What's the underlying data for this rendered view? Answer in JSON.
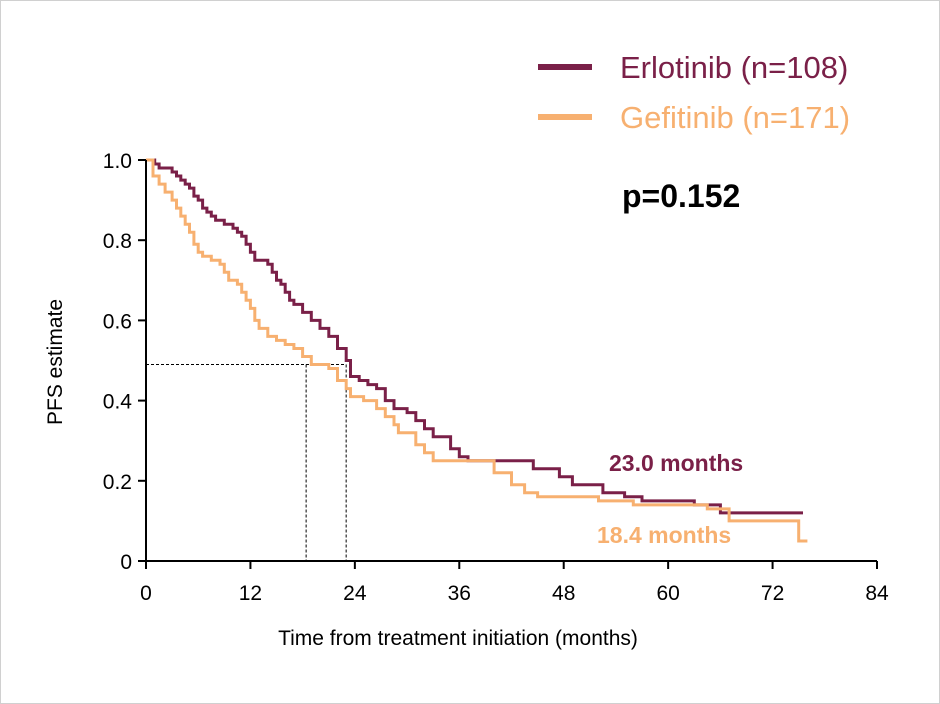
{
  "chart_data": {
    "type": "line",
    "xlabel": "Time from treatment initiation (months)",
    "ylabel": "PFS estimate",
    "xlim": [
      0,
      84
    ],
    "ylim": [
      0,
      1
    ],
    "x_ticks": [
      0,
      12,
      24,
      36,
      48,
      60,
      72,
      84
    ],
    "y_ticks": [
      0,
      0.2,
      0.4,
      0.6,
      0.8,
      1.0
    ],
    "x_tick_labels": [
      "0",
      "12",
      "24",
      "36",
      "48",
      "60",
      "72",
      "84"
    ],
    "y_tick_labels": [
      "0",
      "0.2",
      "0.4",
      "0.6",
      "0.8",
      "1.0"
    ],
    "grid": false,
    "legend_position": "top-right",
    "annotation_pvalue": "p=0.152",
    "medians": {
      "y": 0.49,
      "x": [
        18.4,
        23.0
      ]
    },
    "series": [
      {
        "name": "Erlotinib (n=108)",
        "color": "#7a2048",
        "median_label": "23.0 months",
        "steps": [
          [
            0,
            1.0
          ],
          [
            1,
            0.99
          ],
          [
            1.5,
            0.98
          ],
          [
            3,
            0.97
          ],
          [
            3.5,
            0.96
          ],
          [
            4,
            0.95
          ],
          [
            4.5,
            0.94
          ],
          [
            5,
            0.93
          ],
          [
            5.5,
            0.91
          ],
          [
            6,
            0.9
          ],
          [
            6.5,
            0.88
          ],
          [
            7,
            0.87
          ],
          [
            7.5,
            0.86
          ],
          [
            8,
            0.85
          ],
          [
            9,
            0.84
          ],
          [
            10,
            0.83
          ],
          [
            10.5,
            0.82
          ],
          [
            11,
            0.81
          ],
          [
            11.5,
            0.79
          ],
          [
            12,
            0.77
          ],
          [
            12.5,
            0.75
          ],
          [
            14,
            0.74
          ],
          [
            14.5,
            0.72
          ],
          [
            15,
            0.7
          ],
          [
            15.5,
            0.69
          ],
          [
            16,
            0.67
          ],
          [
            16.5,
            0.65
          ],
          [
            17,
            0.64
          ],
          [
            18,
            0.62
          ],
          [
            19,
            0.6
          ],
          [
            20,
            0.58
          ],
          [
            21,
            0.56
          ],
          [
            22,
            0.53
          ],
          [
            23,
            0.5
          ],
          [
            23.5,
            0.46
          ],
          [
            24.5,
            0.45
          ],
          [
            25.5,
            0.44
          ],
          [
            26.5,
            0.43
          ],
          [
            27.5,
            0.4
          ],
          [
            28.5,
            0.38
          ],
          [
            30,
            0.37
          ],
          [
            31,
            0.35
          ],
          [
            32,
            0.33
          ],
          [
            33,
            0.31
          ],
          [
            35,
            0.28
          ],
          [
            36,
            0.26
          ],
          [
            37,
            0.25
          ],
          [
            41,
            0.25
          ],
          [
            44.5,
            0.23
          ],
          [
            47.5,
            0.21
          ],
          [
            49,
            0.19
          ],
          [
            52.5,
            0.17
          ],
          [
            55,
            0.16
          ],
          [
            57,
            0.15
          ],
          [
            63,
            0.14
          ],
          [
            66,
            0.12
          ],
          [
            75.5,
            0.12
          ]
        ]
      },
      {
        "name": "Gefitinib (n=171)",
        "color": "#f7b070",
        "median_label": "18.4 months",
        "steps": [
          [
            0,
            1.0
          ],
          [
            0.8,
            0.96
          ],
          [
            1.5,
            0.94
          ],
          [
            2.2,
            0.92
          ],
          [
            3,
            0.9
          ],
          [
            3.5,
            0.88
          ],
          [
            4,
            0.86
          ],
          [
            4.5,
            0.84
          ],
          [
            5,
            0.82
          ],
          [
            5.5,
            0.79
          ],
          [
            6,
            0.77
          ],
          [
            6.5,
            0.76
          ],
          [
            7.5,
            0.75
          ],
          [
            8.5,
            0.74
          ],
          [
            9,
            0.72
          ],
          [
            9.5,
            0.7
          ],
          [
            10.5,
            0.69
          ],
          [
            11,
            0.67
          ],
          [
            11.5,
            0.65
          ],
          [
            12,
            0.63
          ],
          [
            12.5,
            0.6
          ],
          [
            13,
            0.58
          ],
          [
            14,
            0.56
          ],
          [
            15,
            0.55
          ],
          [
            16,
            0.54
          ],
          [
            17,
            0.53
          ],
          [
            18,
            0.51
          ],
          [
            19,
            0.49
          ],
          [
            21,
            0.48
          ],
          [
            22,
            0.45
          ],
          [
            23,
            0.43
          ],
          [
            23.5,
            0.41
          ],
          [
            25,
            0.4
          ],
          [
            26.5,
            0.38
          ],
          [
            27.5,
            0.36
          ],
          [
            28.5,
            0.34
          ],
          [
            29,
            0.32
          ],
          [
            31,
            0.29
          ],
          [
            32,
            0.27
          ],
          [
            33,
            0.25
          ],
          [
            40,
            0.22
          ],
          [
            42,
            0.19
          ],
          [
            43.5,
            0.17
          ],
          [
            45,
            0.16
          ],
          [
            52,
            0.15
          ],
          [
            56,
            0.14
          ],
          [
            64.5,
            0.13
          ],
          [
            67,
            0.1
          ],
          [
            75,
            0.05
          ],
          [
            76,
            0.05
          ]
        ]
      }
    ]
  }
}
